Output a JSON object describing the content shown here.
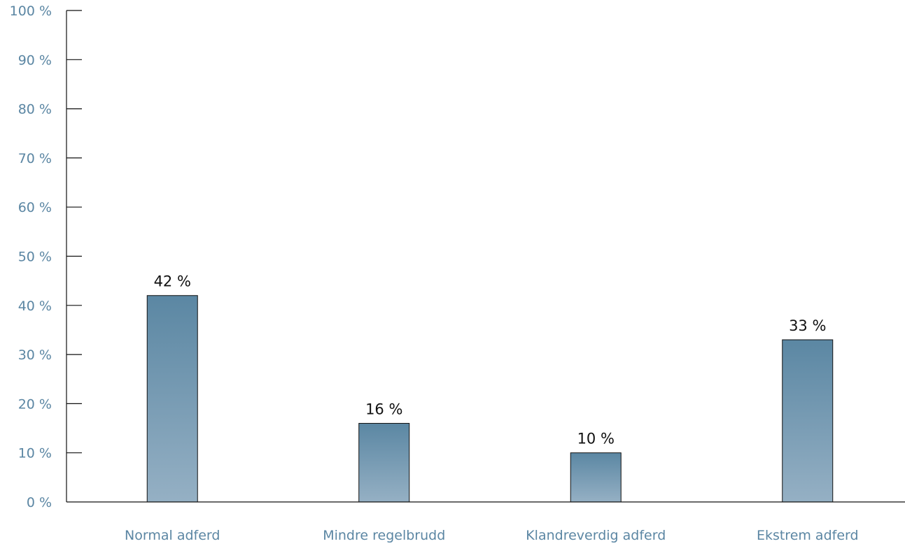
{
  "chart_data": {
    "type": "bar",
    "categories": [
      "Normal adferd",
      "Mindre regelbrudd",
      "Klandreverdig adferd",
      "Ekstrem adferd"
    ],
    "values": [
      42,
      16,
      10,
      33
    ],
    "value_labels": [
      "42 %",
      "16 %",
      "10 %",
      "33 %"
    ],
    "title": "",
    "xlabel": "",
    "ylabel": "",
    "ylim": [
      0,
      100
    ],
    "yticks": [
      0,
      10,
      20,
      30,
      40,
      50,
      60,
      70,
      80,
      90,
      100
    ],
    "ytick_labels": [
      "0 %",
      "10 %",
      "20 %",
      "30 %",
      "40 %",
      "50 %",
      "60 %",
      "70 %",
      "80 %",
      "90 %",
      "100 %"
    ],
    "grid": false,
    "legend": "none",
    "colors": {
      "bar_top": "#5b87a3",
      "bar_bottom": "#95b0c4",
      "axis_text": "#5b86a3",
      "value_text": "#111111",
      "axis_line": "#111111"
    }
  }
}
